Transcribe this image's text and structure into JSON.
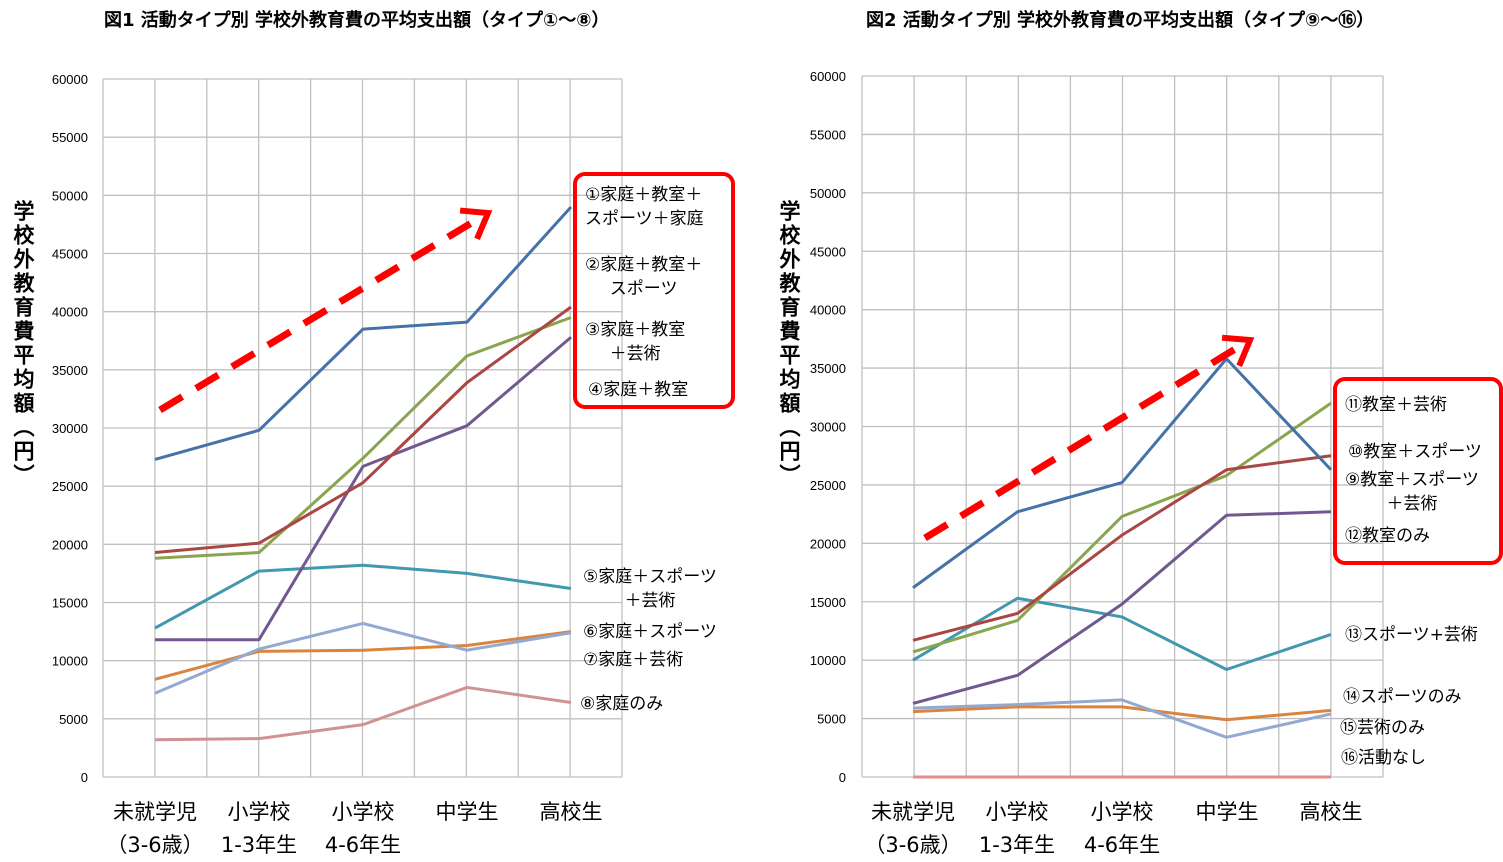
{
  "chart_data": [
    {
      "type": "line",
      "title": "図1 活動タイプ別 学校外教育費の平均支出額（タイプ①～⑧）",
      "ylabel": "学校外教育費平均額（円）",
      "xlabel": "",
      "ylim": [
        0,
        60000
      ],
      "yticks": [
        "0",
        "5000",
        "10000",
        "15000",
        "20000",
        "25000",
        "30000",
        "35000",
        "40000",
        "45000",
        "50000",
        "55000",
        "60000"
      ],
      "categories": [
        [
          "未就学児",
          "（3-6歳）"
        ],
        [
          "小学校",
          "1-3年生"
        ],
        [
          "小学校",
          "4-6年生"
        ],
        [
          "中学生",
          ""
        ],
        [
          "高校生",
          ""
        ]
      ],
      "grid": true,
      "series": [
        {
          "name": "①家庭＋教室＋スポーツ＋家庭",
          "color": "#4572a7",
          "values": [
            27300,
            29800,
            38500,
            39100,
            49000
          ]
        },
        {
          "name": "②家庭＋教室＋スポーツ",
          "color": "#aa4643",
          "values": [
            19300,
            20100,
            25300,
            33900,
            40400
          ]
        },
        {
          "name": "③家庭＋教室＋芸術",
          "color": "#89a54e",
          "values": [
            18800,
            19300,
            27400,
            36200,
            39500
          ]
        },
        {
          "name": "④家庭＋教室",
          "color": "#71588f",
          "values": [
            11800,
            11800,
            26700,
            30200,
            37800
          ]
        },
        {
          "name": "⑤家庭＋スポーツ＋芸術",
          "color": "#4198af",
          "values": [
            12800,
            17700,
            18200,
            17500,
            16200
          ]
        },
        {
          "name": "⑥家庭＋スポーツ",
          "color": "#93a9cf",
          "values": [
            7200,
            11000,
            13200,
            10900,
            12400
          ]
        },
        {
          "name": "⑦家庭＋芸術",
          "color": "#db843d",
          "values": [
            8400,
            10800,
            10900,
            11300,
            12500
          ]
        },
        {
          "name": "⑧家庭のみ",
          "color": "#d19392",
          "values": [
            3200,
            3300,
            4500,
            7700,
            6400
          ]
        }
      ],
      "annotation_labels": [
        [
          "①家庭＋教室＋",
          "スポーツ＋家庭"
        ],
        [
          "②家庭＋教室＋",
          "スポーツ"
        ],
        [
          "③家庭＋教室",
          "＋芸術"
        ],
        [
          "④家庭＋教室"
        ],
        [
          "⑤家庭＋スポーツ",
          "＋芸術"
        ],
        [
          "⑥家庭＋スポーツ"
        ],
        [
          "⑦家庭＋芸術"
        ],
        [
          "⑧家庭のみ"
        ]
      ],
      "accent_color": "#ff0000"
    },
    {
      "type": "line",
      "title": "図2 活動タイプ別 学校外教育費の平均支出額（タイプ⑨～⑯）",
      "ylabel": "学校外教育費平均額（円）",
      "xlabel": "",
      "ylim": [
        0,
        60000
      ],
      "yticks": [
        "0",
        "5000",
        "10000",
        "15000",
        "20000",
        "25000",
        "30000",
        "35000",
        "40000",
        "45000",
        "50000",
        "55000",
        "60000"
      ],
      "categories": [
        [
          "未就学児",
          "（3-6歳）"
        ],
        [
          "小学校",
          "1-3年生"
        ],
        [
          "小学校",
          "4-6年生"
        ],
        [
          "中学生",
          ""
        ],
        [
          "高校生",
          ""
        ]
      ],
      "grid": true,
      "series": [
        {
          "name": "⑨教室＋スポーツ＋芸術",
          "color": "#4572a7",
          "values": [
            16200,
            22700,
            25200,
            35800,
            26300
          ]
        },
        {
          "name": "⑩教室＋スポーツ",
          "color": "#aa4643",
          "values": [
            11700,
            14000,
            20700,
            26300,
            27500
          ]
        },
        {
          "name": "⑪教室＋芸術",
          "color": "#89a54e",
          "values": [
            10700,
            13400,
            22300,
            25800,
            32000
          ]
        },
        {
          "name": "⑫教室のみ",
          "color": "#71588f",
          "values": [
            6300,
            8700,
            14800,
            22400,
            22700
          ]
        },
        {
          "name": "⑬スポーツ+芸術",
          "color": "#4198af",
          "values": [
            10000,
            15300,
            13700,
            9200,
            12200
          ]
        },
        {
          "name": "⑭スポーツのみ",
          "color": "#93a9cf",
          "values": [
            5900,
            6200,
            6600,
            3400,
            5400
          ]
        },
        {
          "name": "⑮芸術のみ",
          "color": "#db843d",
          "values": [
            5600,
            6000,
            6000,
            4900,
            5700
          ]
        },
        {
          "name": "⑯活動なし",
          "color": "#e48f8f",
          "values": [
            0,
            0,
            0,
            0,
            0
          ]
        }
      ],
      "annotation_labels": [
        [
          "⑪教室＋芸術"
        ],
        [
          "⑩教室＋スポーツ"
        ],
        [
          "⑨教室＋スポーツ",
          "＋芸術"
        ],
        [
          "⑫教室のみ"
        ],
        [
          "⑬スポーツ+芸術"
        ],
        [
          "⑭スポーツのみ"
        ],
        [
          "⑮芸術のみ"
        ],
        [
          "⑯活動なし"
        ]
      ],
      "accent_color": "#ff0000"
    }
  ]
}
